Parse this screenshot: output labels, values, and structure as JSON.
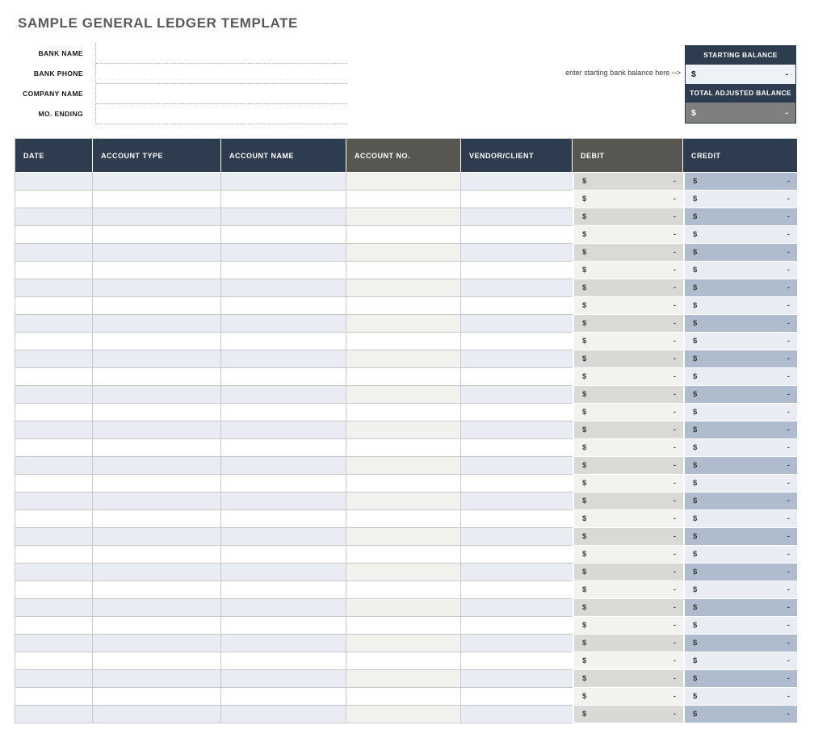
{
  "page": {
    "title": "SAMPLE GENERAL LEDGER TEMPLATE"
  },
  "form": {
    "fields": [
      {
        "label": "BANK NAME",
        "value": ""
      },
      {
        "label": "BANK PHONE",
        "value": ""
      },
      {
        "label": "COMPANY NAME",
        "value": ""
      },
      {
        "label": "MO. ENDING",
        "value": ""
      }
    ]
  },
  "balances": {
    "note": "enter starting bank balance here -->",
    "starting": {
      "label": "STARTING BALANCE",
      "currency": "$",
      "value": "-"
    },
    "adjusted": {
      "label": "TOTAL ADJUSTED BALANCE",
      "currency": "$",
      "value": "-"
    }
  },
  "ledger": {
    "columns": [
      "DATE",
      "ACCOUNT TYPE",
      "ACCOUNT NAME",
      "ACCOUNT NO.",
      "VENDOR/CLIENT",
      "DEBIT",
      "CREDIT"
    ],
    "row_count": 31,
    "empty_amount": {
      "currency": "$",
      "value": "-"
    },
    "empty_text": ""
  },
  "colors": {
    "header_navy": "#2e3c50",
    "header_gray": "#585651",
    "title_gray": "#595959",
    "row_shade_blue": "#e9edf3",
    "row_shade_accno": "#f2f1ee",
    "debit_odd": "#d9d9d6",
    "debit_even": "#f2f2ef",
    "credit_odd": "#aebcce",
    "credit_even": "#e9edf3",
    "adjusted_cell_gray": "#7f7f7f",
    "starting_cell": "#eef1f6",
    "grid_line": "#c9c9c9"
  }
}
